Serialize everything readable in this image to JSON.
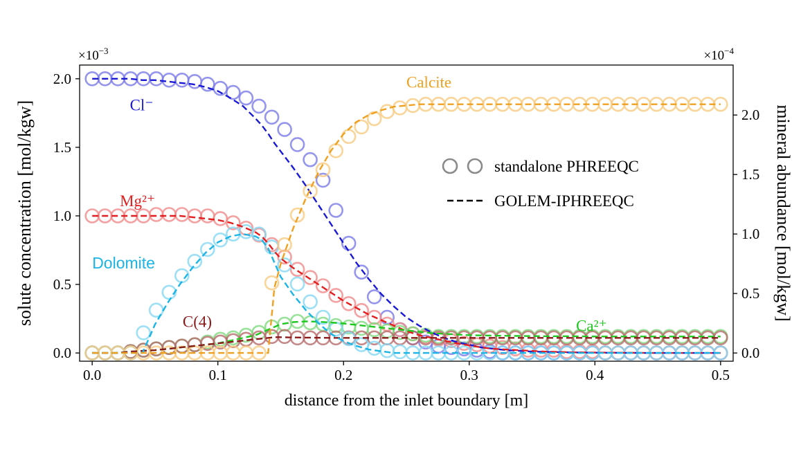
{
  "chart_data": {
    "type": "line",
    "xlabel": "distance from the inlet boundary [m]",
    "ylabel_left": "solute concentration [mol/kgw]",
    "ylabel_right": "mineral abundance [mol/kgw]",
    "left_multiplier": "×10",
    "left_exponent": "−3",
    "right_multiplier": "×10",
    "right_exponent": "−4",
    "xlim": [
      -0.01,
      0.51
    ],
    "ylim_left": [
      -0.06,
      2.1
    ],
    "ylim_right": [
      -0.069,
      2.42
    ],
    "x_ticks": [
      0.0,
      0.1,
      0.2,
      0.3,
      0.4,
      0.5
    ],
    "x_tick_labels": [
      "0.0",
      "0.1",
      "0.2",
      "0.3",
      "0.4",
      "0.5"
    ],
    "left_ticks": [
      0.0,
      0.5,
      1.0,
      1.5,
      2.0
    ],
    "left_tick_labels": [
      "0.0",
      "0.5",
      "1.0",
      "1.5",
      "2.0"
    ],
    "right_ticks": [
      0.0,
      0.5,
      1.0,
      1.5,
      2.0
    ],
    "right_tick_labels": [
      "0.0",
      "0.5",
      "1.0",
      "1.5",
      "2.0"
    ],
    "marker_x": [
      0.0,
      0.0102,
      0.0204,
      0.0306,
      0.0408,
      0.051,
      0.0612,
      0.0714,
      0.0816,
      0.0918,
      0.102,
      0.1122,
      0.1224,
      0.1327,
      0.1429,
      0.1531,
      0.1633,
      0.1735,
      0.1837,
      0.1939,
      0.2041,
      0.2143,
      0.2245,
      0.2347,
      0.2449,
      0.2551,
      0.2653,
      0.2755,
      0.2857,
      0.2959,
      0.3061,
      0.3163,
      0.3265,
      0.3367,
      0.3469,
      0.3571,
      0.3673,
      0.3776,
      0.3878,
      0.398,
      0.4082,
      0.4184,
      0.4286,
      0.4388,
      0.449,
      0.4592,
      0.4694,
      0.4796,
      0.4898,
      0.5
    ],
    "line_x": [
      0.0,
      0.01,
      0.02,
      0.03,
      0.04,
      0.05,
      0.06,
      0.07,
      0.08,
      0.09,
      0.1,
      0.11,
      0.12,
      0.13,
      0.135,
      0.14,
      0.145,
      0.15,
      0.16,
      0.17,
      0.18,
      0.19,
      0.2,
      0.21,
      0.22,
      0.23,
      0.24,
      0.25,
      0.26,
      0.27,
      0.28,
      0.29,
      0.3,
      0.31,
      0.32,
      0.33,
      0.34,
      0.35,
      0.36,
      0.38,
      0.4,
      0.45,
      0.5
    ],
    "series": [
      {
        "name": "Cl⁻",
        "axis": "left",
        "color": "#1a1ad6",
        "marker_color": "#7b7be8",
        "label_pos": [
          0.03,
          1.77
        ],
        "marker_y": [
          2.0,
          2.0,
          2.0,
          2.0,
          2.0,
          2.0,
          1.99,
          1.99,
          1.98,
          1.96,
          1.93,
          1.9,
          1.86,
          1.8,
          1.72,
          1.63,
          1.52,
          1.41,
          1.26,
          1.04,
          0.8,
          0.59,
          0.41,
          0.26,
          0.17,
          0.11,
          0.08,
          0.05,
          0.04,
          0.03,
          0.02,
          0.01,
          0.0,
          0.0,
          0.0,
          0.0,
          0.0,
          0.0,
          0.0,
          0.0,
          0.0,
          0.0,
          0.0,
          0.0,
          0.0,
          0.0,
          0.0,
          0.0,
          0.0,
          0.0
        ],
        "line_y": [
          2.0,
          2.0,
          2.0,
          2.0,
          1.99,
          1.99,
          1.98,
          1.97,
          1.96,
          1.94,
          1.91,
          1.86,
          1.8,
          1.71,
          1.66,
          1.6,
          1.53,
          1.47,
          1.35,
          1.22,
          1.08,
          0.94,
          0.8,
          0.66,
          0.54,
          0.43,
          0.34,
          0.26,
          0.2,
          0.15,
          0.11,
          0.08,
          0.06,
          0.04,
          0.03,
          0.02,
          0.015,
          0.01,
          0.008,
          0.004,
          0.002,
          0.0,
          0.0
        ]
      },
      {
        "name": "Mg²⁺",
        "axis": "left",
        "color": "#e21e1e",
        "marker_color": "#f08a8a",
        "label_pos": [
          0.022,
          1.07
        ],
        "marker_y": [
          1.0,
          1.0,
          1.0,
          1.0,
          1.0,
          1.01,
          1.01,
          1.01,
          1.0,
          1.0,
          0.98,
          0.95,
          0.91,
          0.86,
          0.79,
          0.7,
          0.61,
          0.55,
          0.49,
          0.42,
          0.36,
          0.31,
          0.26,
          0.21,
          0.17,
          0.14,
          0.12,
          0.1,
          0.09,
          0.07,
          0.06,
          0.05,
          0.04,
          0.03,
          0.02,
          0.02,
          0.02,
          0.01,
          0.01,
          0.01,
          0.0,
          0.0,
          0.0,
          0.0,
          0.0,
          0.0,
          0.0,
          0.0,
          0.0,
          0.0
        ],
        "line_y": [
          1.0,
          1.0,
          1.0,
          1.0,
          1.0,
          1.0,
          1.0,
          1.0,
          0.99,
          0.98,
          0.97,
          0.95,
          0.92,
          0.88,
          0.85,
          0.8,
          0.74,
          0.69,
          0.62,
          0.56,
          0.5,
          0.44,
          0.38,
          0.33,
          0.28,
          0.24,
          0.2,
          0.16,
          0.13,
          0.11,
          0.09,
          0.07,
          0.055,
          0.04,
          0.03,
          0.025,
          0.02,
          0.015,
          0.01,
          0.005,
          0.003,
          0.0,
          0.0
        ]
      },
      {
        "name": "Ca²⁺",
        "axis": "left",
        "color": "#1ec81e",
        "marker_color": "#7fd97f",
        "label_pos": [
          0.385,
          0.16
        ],
        "marker_y": [
          0.0,
          0.0,
          0.0,
          0.01,
          0.02,
          0.03,
          0.04,
          0.05,
          0.06,
          0.08,
          0.1,
          0.11,
          0.13,
          0.15,
          0.19,
          0.21,
          0.23,
          0.22,
          0.21,
          0.2,
          0.19,
          0.18,
          0.17,
          0.16,
          0.15,
          0.14,
          0.13,
          0.12,
          0.12,
          0.12,
          0.12,
          0.12,
          0.12,
          0.12,
          0.12,
          0.12,
          0.12,
          0.12,
          0.12,
          0.12,
          0.12,
          0.12,
          0.12,
          0.12,
          0.12,
          0.12,
          0.12,
          0.12,
          0.12,
          0.12
        ],
        "line_y": [
          0.0,
          0.0,
          0.0,
          0.01,
          0.015,
          0.02,
          0.03,
          0.04,
          0.05,
          0.06,
          0.07,
          0.09,
          0.11,
          0.13,
          0.15,
          0.17,
          0.19,
          0.21,
          0.225,
          0.23,
          0.228,
          0.222,
          0.215,
          0.205,
          0.195,
          0.185,
          0.175,
          0.165,
          0.155,
          0.145,
          0.14,
          0.135,
          0.13,
          0.128,
          0.126,
          0.125,
          0.124,
          0.123,
          0.122,
          0.122,
          0.12,
          0.12,
          0.12
        ]
      },
      {
        "name": "C(4)",
        "axis": "left",
        "color": "#8b1a1a",
        "marker_color": "#b86b6b",
        "label_pos": [
          0.072,
          0.19
        ],
        "marker_y": [
          0.0,
          0.0,
          0.0,
          0.01,
          0.02,
          0.03,
          0.04,
          0.05,
          0.06,
          0.07,
          0.08,
          0.09,
          0.1,
          0.11,
          0.12,
          0.12,
          0.11,
          0.11,
          0.11,
          0.11,
          0.11,
          0.11,
          0.11,
          0.11,
          0.11,
          0.11,
          0.11,
          0.11,
          0.11,
          0.11,
          0.11,
          0.11,
          0.11,
          0.11,
          0.11,
          0.11,
          0.11,
          0.11,
          0.11,
          0.11,
          0.11,
          0.11,
          0.11,
          0.11,
          0.11,
          0.11,
          0.11,
          0.11,
          0.11,
          0.11
        ],
        "line_y": [
          0.0,
          0.0,
          0.0,
          0.01,
          0.015,
          0.02,
          0.03,
          0.04,
          0.05,
          0.06,
          0.07,
          0.08,
          0.09,
          0.1,
          0.105,
          0.11,
          0.115,
          0.115,
          0.113,
          0.112,
          0.111,
          0.11,
          0.11,
          0.11,
          0.11,
          0.11,
          0.11,
          0.11,
          0.11,
          0.11,
          0.11,
          0.11,
          0.11,
          0.11,
          0.11,
          0.11,
          0.11,
          0.11,
          0.11,
          0.11,
          0.11,
          0.11,
          0.11
        ]
      },
      {
        "name": "Dolomite",
        "axis": "right",
        "color": "#1ab4e6",
        "marker_color": "#85d8f3",
        "label_sans": true,
        "label_pos": [
          0.0,
          0.71
        ],
        "marker_y": [
          0.0,
          0.0,
          0.0,
          0.0,
          0.17,
          0.36,
          0.51,
          0.65,
          0.77,
          0.87,
          0.95,
          1.0,
          1.02,
          1.0,
          0.89,
          0.74,
          0.58,
          0.43,
          0.3,
          0.2,
          0.12,
          0.07,
          0.04,
          0.02,
          0.01,
          0.0,
          0.0,
          0.0,
          0.0,
          0.0,
          0.0,
          0.0,
          0.0,
          0.0,
          0.0,
          0.0,
          0.0,
          0.0,
          0.0,
          0.0,
          0.0,
          0.0,
          0.0,
          0.0,
          0.0,
          0.0,
          0.0,
          0.0,
          0.0,
          0.0
        ],
        "line_y": [
          0.0,
          0.0,
          0.0,
          0.0,
          0.0,
          0.24,
          0.42,
          0.58,
          0.72,
          0.84,
          0.93,
          0.98,
          1.0,
          0.98,
          0.95,
          0.88,
          0.76,
          0.64,
          0.49,
          0.36,
          0.25,
          0.16,
          0.1,
          0.06,
          0.03,
          0.015,
          0.0,
          0.0,
          0.0,
          0.0,
          0.0,
          0.0,
          0.0,
          0.0,
          0.0,
          0.0,
          0.0,
          0.0,
          0.0,
          0.0,
          0.0,
          0.0,
          0.0
        ]
      },
      {
        "name": "Calcite",
        "axis": "right",
        "color": "#f0a020",
        "marker_color": "#f7cb80",
        "label_pos": [
          0.25,
          2.23
        ],
        "marker_y": [
          0.0,
          0.0,
          0.0,
          0.0,
          0.0,
          0.0,
          0.0,
          0.0,
          0.0,
          0.0,
          0.0,
          0.0,
          0.0,
          0.0,
          0.59,
          0.91,
          1.16,
          1.36,
          1.54,
          1.7,
          1.82,
          1.9,
          1.97,
          2.03,
          2.06,
          2.08,
          2.09,
          2.09,
          2.09,
          2.09,
          2.09,
          2.09,
          2.09,
          2.09,
          2.09,
          2.09,
          2.09,
          2.09,
          2.09,
          2.09,
          2.09,
          2.09,
          2.09,
          2.09,
          2.09,
          2.09,
          2.09,
          2.09,
          2.09,
          2.09
        ],
        "line_y": [
          0.0,
          0.0,
          0.0,
          0.0,
          0.0,
          0.0,
          0.0,
          0.0,
          0.0,
          0.0,
          0.0,
          0.0,
          0.0,
          0.0,
          0.0,
          0.0,
          0.55,
          0.75,
          1.05,
          1.3,
          1.52,
          1.7,
          1.84,
          1.94,
          2.0,
          2.04,
          2.07,
          2.08,
          2.09,
          2.09,
          2.09,
          2.09,
          2.09,
          2.09,
          2.09,
          2.09,
          2.09,
          2.09,
          2.09,
          2.09,
          2.09,
          2.09,
          2.09
        ]
      }
    ],
    "legend": {
      "placement": "center-right",
      "marker_entry": "standalone PHREEQC",
      "line_entry": "GOLEM-IPHREEQC"
    }
  }
}
